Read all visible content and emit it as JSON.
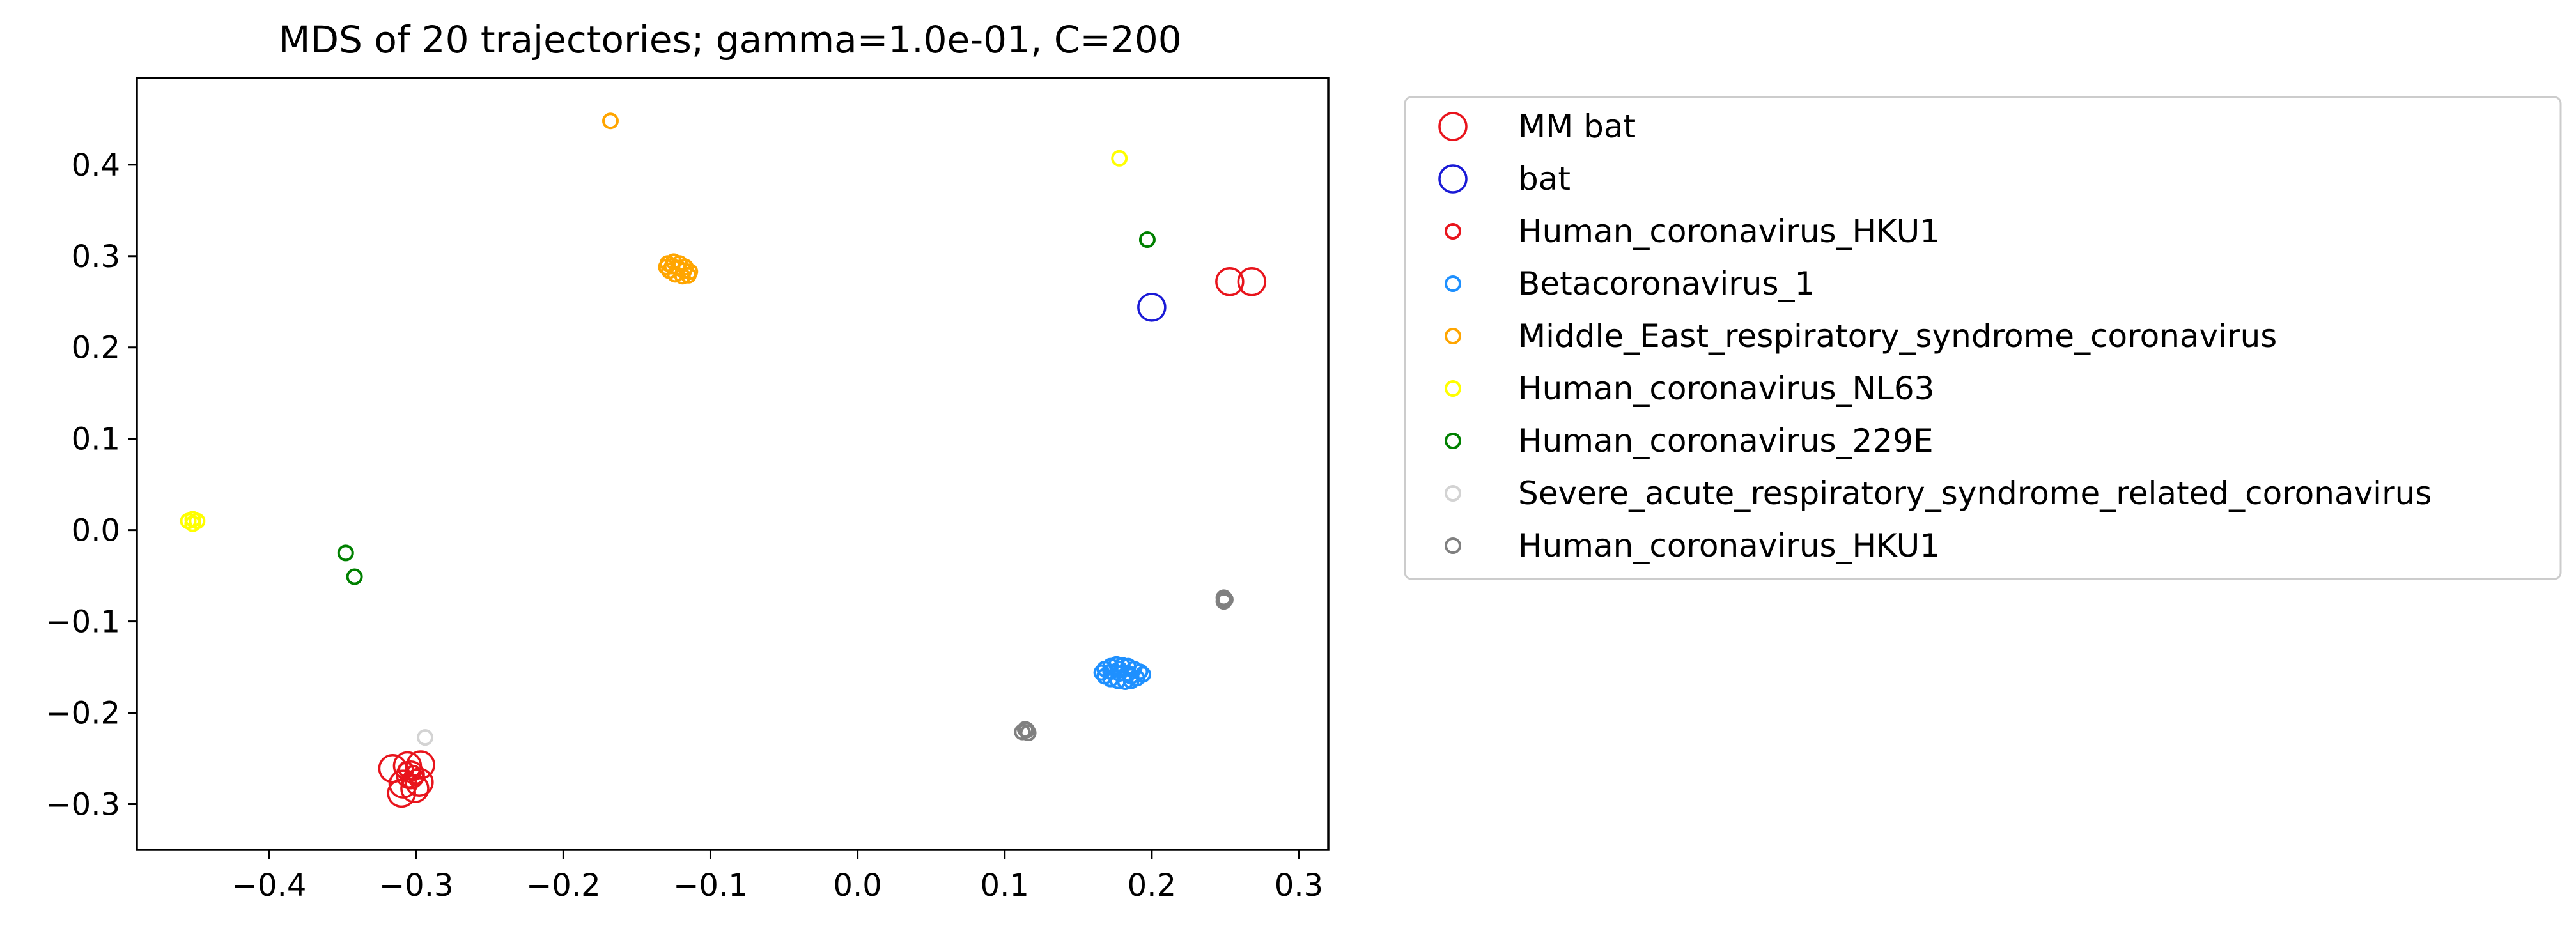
{
  "chart_data": {
    "type": "scatter",
    "title": "MDS of 20 trajectories; gamma=1.0e-01, C=200",
    "xlabel": "",
    "ylabel": "",
    "xlim": [
      -0.49,
      0.32
    ],
    "ylim": [
      -0.35,
      0.495
    ],
    "grid": false,
    "legend_position": "outside-right",
    "x_ticks": [
      -0.4,
      -0.3,
      -0.2,
      -0.1,
      0.0,
      0.1,
      0.2,
      0.3
    ],
    "x_tick_labels": [
      "−0.4",
      "−0.3",
      "−0.2",
      "−0.1",
      "0.0",
      "0.1",
      "0.2",
      "0.3"
    ],
    "y_ticks": [
      -0.3,
      -0.2,
      -0.1,
      0.0,
      0.1,
      0.2,
      0.3,
      0.4
    ],
    "y_tick_labels": [
      "−0.3",
      "−0.2",
      "−0.1",
      "0.0",
      "0.1",
      "0.2",
      "0.3",
      "0.4"
    ],
    "series": [
      {
        "name": "MM bat",
        "color": "#e8141c",
        "marker": "large-open-circle",
        "points": [
          [
            -0.316,
            -0.261
          ],
          [
            -0.306,
            -0.258
          ],
          [
            -0.297,
            -0.257
          ],
          [
            -0.304,
            -0.268
          ],
          [
            -0.298,
            -0.276
          ],
          [
            -0.309,
            -0.278
          ],
          [
            -0.31,
            -0.288
          ],
          [
            -0.301,
            -0.283
          ],
          [
            0.253,
            0.272
          ],
          [
            0.268,
            0.272
          ]
        ]
      },
      {
        "name": "bat",
        "color": "#1a1ad6",
        "marker": "large-open-circle",
        "points": [
          [
            0.2,
            0.244
          ]
        ]
      },
      {
        "name": "Human_coronavirus_HKU1",
        "color": "#e8141c",
        "marker": "open-circle",
        "points": [
          [
            -0.307,
            -0.262
          ],
          [
            -0.302,
            -0.266
          ],
          [
            -0.3,
            -0.27
          ],
          [
            -0.305,
            -0.274
          ]
        ]
      },
      {
        "name": "Betacoronavirus_1",
        "color": "#1e90ff",
        "marker": "open-circle",
        "points": [
          [
            0.168,
            -0.152
          ],
          [
            0.172,
            -0.149
          ],
          [
            0.176,
            -0.147
          ],
          [
            0.18,
            -0.148
          ],
          [
            0.184,
            -0.149
          ],
          [
            0.188,
            -0.152
          ],
          [
            0.192,
            -0.155
          ],
          [
            0.194,
            -0.158
          ],
          [
            0.19,
            -0.162
          ],
          [
            0.186,
            -0.165
          ],
          [
            0.182,
            -0.166
          ],
          [
            0.177,
            -0.165
          ],
          [
            0.172,
            -0.163
          ],
          [
            0.168,
            -0.16
          ],
          [
            0.166,
            -0.156
          ],
          [
            0.172,
            -0.155
          ],
          [
            0.178,
            -0.157
          ],
          [
            0.184,
            -0.157
          ],
          [
            0.178,
            -0.152
          ],
          [
            0.186,
            -0.16
          ]
        ]
      },
      {
        "name": "Middle_East_respiratory_syndrome_coronavirus",
        "color": "#ffa500",
        "marker": "open-circle",
        "points": [
          [
            -0.168,
            0.448
          ],
          [
            -0.129,
            0.292
          ],
          [
            -0.125,
            0.294
          ],
          [
            -0.121,
            0.292
          ],
          [
            -0.117,
            0.288
          ],
          [
            -0.114,
            0.283
          ],
          [
            -0.115,
            0.279
          ],
          [
            -0.119,
            0.278
          ],
          [
            -0.124,
            0.28
          ],
          [
            -0.128,
            0.284
          ],
          [
            -0.13,
            0.288
          ],
          [
            -0.122,
            0.287
          ],
          [
            -0.118,
            0.284
          ],
          [
            -0.126,
            0.289
          ]
        ]
      },
      {
        "name": "Human_coronavirus_NL63",
        "color": "#ffff00",
        "marker": "open-circle",
        "points": [
          [
            0.178,
            0.407
          ],
          [
            -0.455,
            0.01
          ],
          [
            -0.452,
            0.012
          ],
          [
            -0.449,
            0.01
          ],
          [
            -0.452,
            0.007
          ]
        ]
      },
      {
        "name": "Human_coronavirus_229E",
        "color": "#008000",
        "marker": "open-circle",
        "points": [
          [
            0.197,
            0.318
          ],
          [
            -0.348,
            -0.025
          ],
          [
            -0.342,
            -0.051
          ]
        ]
      },
      {
        "name": "Severe_acute_respiratory_syndrome_related_coronavirus",
        "color": "#d3d3d3",
        "marker": "open-circle",
        "points": [
          [
            -0.294,
            -0.227
          ]
        ]
      },
      {
        "name": "Human_coronavirus_HKU1",
        "color": "#808080",
        "marker": "open-circle",
        "points": [
          [
            0.249,
            -0.074
          ],
          [
            0.249,
            -0.078
          ],
          [
            0.25,
            -0.076
          ],
          [
            0.114,
            -0.218
          ],
          [
            0.116,
            -0.222
          ],
          [
            0.112,
            -0.221
          ],
          [
            0.115,
            -0.219
          ]
        ]
      }
    ]
  }
}
